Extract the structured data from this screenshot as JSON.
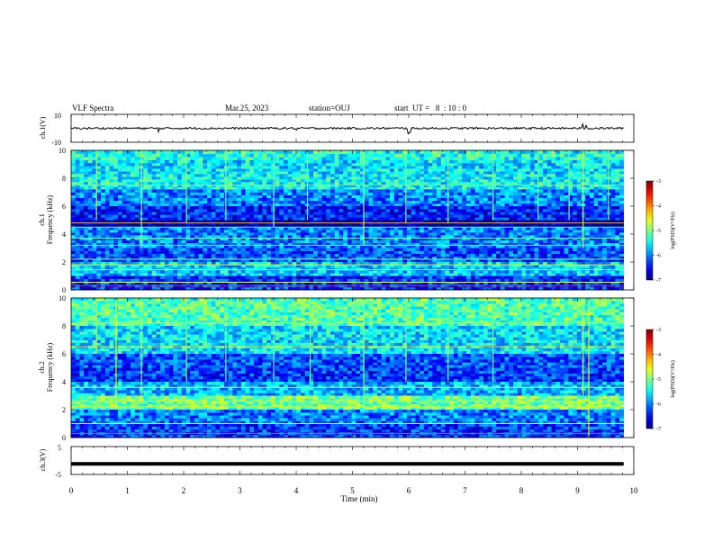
{
  "header": {
    "title": "VLF Spectra",
    "date": "Mar.25, 2023",
    "station": "station=OUJ",
    "start": "start  UT =   8  : 10 : 0"
  },
  "chart_data": [
    {
      "type": "line",
      "panel": "ch1-waveform",
      "ylabel": "ch.1(V)",
      "yticklabels": [
        "10",
        "-10"
      ],
      "ylim": [
        -10,
        10
      ],
      "xlim": [
        0,
        10
      ],
      "data_extent": [
        0,
        9.82
      ],
      "baseline": 0,
      "spikes": [
        {
          "x": 1.55,
          "y": -2.5
        },
        {
          "x": 4.0,
          "y": -1.2
        },
        {
          "x": 6.0,
          "y": -4.0
        },
        {
          "x": 6.02,
          "y": -3.0
        },
        {
          "x": 9.1,
          "y": 3.0
        },
        {
          "x": 9.15,
          "y": 2.0
        }
      ],
      "color": "#000000"
    },
    {
      "type": "heatmap",
      "panel": "ch1-spectrogram",
      "ylabel": "Frequency (kHz)",
      "channel_label": "ch.1",
      "yticklabels": [
        "0",
        "2",
        "4",
        "6",
        "8",
        "10"
      ],
      "ylim": [
        0,
        10
      ],
      "xlim": [
        0,
        10
      ],
      "data_extent": [
        0,
        9.82
      ],
      "bands": [
        {
          "f": [
            9.3,
            10.0
          ],
          "level": -5.4
        },
        {
          "f": [
            8.3,
            9.3
          ],
          "level": -5.6
        },
        {
          "f": [
            7.2,
            8.3
          ],
          "level": -5.5
        },
        {
          "f": [
            6.0,
            7.2
          ],
          "level": -6.0
        },
        {
          "f": [
            5.0,
            6.0
          ],
          "level": -6.4
        },
        {
          "f": [
            4.5,
            5.0
          ],
          "level": -6.9
        },
        {
          "f": [
            3.0,
            4.5
          ],
          "level": -6.0
        },
        {
          "f": [
            2.0,
            3.0
          ],
          "level": -6.2
        },
        {
          "f": [
            1.0,
            2.0
          ],
          "level": -5.7
        },
        {
          "f": [
            0.0,
            1.0
          ],
          "level": -6.3
        }
      ],
      "lines": [
        {
          "f": 0.3,
          "level": -3.6
        },
        {
          "f": 0.55,
          "level": -4.6
        },
        {
          "f": 1.45,
          "level": -5.0
        },
        {
          "f": 1.8,
          "level": -4.4
        },
        {
          "f": 2.2,
          "level": -5.0
        },
        {
          "f": 3.2,
          "level": -5.2
        },
        {
          "f": 3.7,
          "level": -5.0
        },
        {
          "f": 4.5,
          "level": -5.2
        },
        {
          "f": 4.8,
          "level": -4.2
        },
        {
          "f": 7.5,
          "level": -5.0
        }
      ],
      "bursts": [
        {
          "t": 0.45,
          "f0": 5.0,
          "f1": 10.0,
          "level": -4.8
        },
        {
          "t": 1.25,
          "f0": 3.0,
          "f1": 10.0,
          "level": -4.8
        },
        {
          "t": 2.05,
          "f0": 4.8,
          "f1": 10.0,
          "level": -5.0
        },
        {
          "t": 2.75,
          "f0": 5.0,
          "f1": 10.0,
          "level": -5.0
        },
        {
          "t": 3.6,
          "f0": 4.5,
          "f1": 10.0,
          "level": -5.0
        },
        {
          "t": 4.2,
          "f0": 5.0,
          "f1": 10.0,
          "level": -5.0
        },
        {
          "t": 5.2,
          "f0": 3.2,
          "f1": 10.0,
          "level": -4.8
        },
        {
          "t": 5.95,
          "f0": 4.8,
          "f1": 10.0,
          "level": -4.9
        },
        {
          "t": 6.7,
          "f0": 4.8,
          "f1": 10.0,
          "level": -5.0
        },
        {
          "t": 7.5,
          "f0": 5.0,
          "f1": 10.0,
          "level": -5.0
        },
        {
          "t": 8.3,
          "f0": 5.0,
          "f1": 10.0,
          "level": -5.0
        },
        {
          "t": 8.85,
          "f0": 5.0,
          "f1": 10.0,
          "level": -5.0
        },
        {
          "t": 9.1,
          "f0": 3.0,
          "f1": 10.0,
          "level": -4.7
        },
        {
          "t": 9.55,
          "f0": 5.0,
          "f1": 10.0,
          "level": -5.0
        }
      ]
    },
    {
      "type": "heatmap",
      "panel": "ch2-spectrogram",
      "ylabel": "Frequency (kHz)",
      "channel_label": "ch.2",
      "yticklabels": [
        "0",
        "2",
        "4",
        "6",
        "8",
        "10"
      ],
      "ylim": [
        0,
        10
      ],
      "xlim": [
        0,
        10
      ],
      "data_extent": [
        0,
        9.82
      ],
      "bands": [
        {
          "f": [
            8.0,
            10.0
          ],
          "level": -5.2
        },
        {
          "f": [
            6.0,
            8.0
          ],
          "level": -5.6
        },
        {
          "f": [
            5.0,
            6.0
          ],
          "level": -6.2
        },
        {
          "f": [
            4.0,
            5.0
          ],
          "level": -6.3
        },
        {
          "f": [
            3.0,
            4.0
          ],
          "level": -5.8
        },
        {
          "f": [
            2.0,
            3.0
          ],
          "level": -5.1
        },
        {
          "f": [
            1.0,
            2.0
          ],
          "level": -6.0
        },
        {
          "f": [
            0.0,
            1.0
          ],
          "level": -6.3
        }
      ],
      "lines": [
        {
          "f": 0.3,
          "level": -3.8
        },
        {
          "f": 1.0,
          "level": -4.5
        },
        {
          "f": 2.2,
          "level": -4.6
        },
        {
          "f": 2.6,
          "level": -4.4
        },
        {
          "f": 3.6,
          "level": -4.6
        },
        {
          "f": 6.5,
          "level": -4.4
        },
        {
          "f": 8.2,
          "level": -4.8
        }
      ],
      "bursts": [
        {
          "t": 0.45,
          "f0": 6.0,
          "f1": 10.0,
          "level": -4.8
        },
        {
          "t": 0.8,
          "f0": 2.0,
          "f1": 10.0,
          "level": -4.6
        },
        {
          "t": 1.25,
          "f0": 3.0,
          "f1": 10.0,
          "level": -4.8
        },
        {
          "t": 2.05,
          "f0": 4.0,
          "f1": 10.0,
          "level": -5.0
        },
        {
          "t": 2.75,
          "f0": 4.0,
          "f1": 10.0,
          "level": -5.0
        },
        {
          "t": 3.6,
          "f0": 4.0,
          "f1": 10.0,
          "level": -5.0
        },
        {
          "t": 4.25,
          "f0": 4.0,
          "f1": 10.0,
          "level": -5.0
        },
        {
          "t": 5.2,
          "f0": 2.0,
          "f1": 10.0,
          "level": -4.8
        },
        {
          "t": 5.95,
          "f0": 4.0,
          "f1": 10.0,
          "level": -4.9
        },
        {
          "t": 6.7,
          "f0": 4.0,
          "f1": 10.0,
          "level": -5.0
        },
        {
          "t": 7.5,
          "f0": 4.0,
          "f1": 10.0,
          "level": -5.0
        },
        {
          "t": 9.1,
          "f0": 3.0,
          "f1": 10.0,
          "level": -4.7
        },
        {
          "t": 9.2,
          "f0": 0.0,
          "f1": 10.0,
          "level": -4.6
        }
      ]
    },
    {
      "type": "line",
      "panel": "ch3-waveform",
      "ylabel": "ch.3(V)",
      "yticklabels": [
        "5",
        "-5"
      ],
      "ylim": [
        -5,
        5
      ],
      "xlim": [
        0,
        10
      ],
      "data_extent": [
        0,
        9.82
      ],
      "baseline": -1.2,
      "xlabel": "Time (min)",
      "xticklabels": [
        "0",
        "1",
        "2",
        "3",
        "4",
        "5",
        "6",
        "7",
        "8",
        "9",
        "10"
      ],
      "color": "#000000"
    }
  ],
  "colorbar": {
    "label": "log(PSD)(V²/Hz)",
    "ticklabels": [
      "-3",
      "-4",
      "-5",
      "-6",
      "-7"
    ],
    "range": [
      -7,
      -3
    ]
  }
}
